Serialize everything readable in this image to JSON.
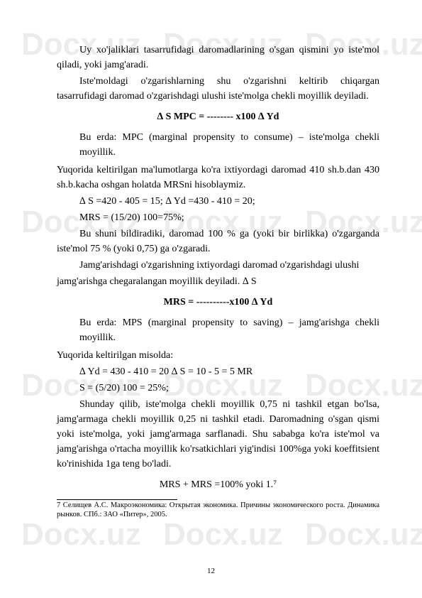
{
  "watermark": "Docx.uz",
  "paragraphs": {
    "p1": "Uy xo'jaliklari tasarrufidagi daromadlarining o'sgan qismini yo iste'mol qiladi, yoki jamg'aradi.",
    "p2": "Iste'moldagi o'zgarishlarning shu o'zgarishni keltirib chiqargan tasarrufidagi daromad o'zgarishdagi ulushi iste'molga chekli moyillik deyiladi.",
    "formula1": "∆ S MPC = -------- x100 ∆ Yd",
    "note1": "Bu erda: MPC (marginal propensity to consume) – iste'molga chekli moyillik.",
    "p3": "Yuqorida keltirilgan ma'lumotlarga ko'ra ixtiyordagi daromad 410 sh.b.dan 430 sh.b.kacha oshgan holatda MRSni hisoblaymiz.",
    "calc1": "∆ S =420 - 405 = 15;                   ∆ Yd =430 - 410 = 20;",
    "calc2": "MRS = (15/20) 100=75%;",
    "p4": "Bu shuni bildiradiki, daromad 100 % ga (yoki bir birlikka) o'zgarganda iste'mol 75 % (yoki 0,75) ga o'zgaradi.",
    "p5": "Jamg'arishdagi o'zgarishning ixtiyordagi daromad o'zgarishdagi ulushi",
    "p5b": "jamg'arishga chegaralangan moyillik deyiladi.   ∆ S",
    "formula2": "MRS = ----------x100 ∆ Yd",
    "note2": "Bu erda: MPS (marginal propensity to saving) – jamg'arishga chekli moyillik.",
    "p6": "Yuqorida keltirilgan misolda:",
    "calc3": "∆ Yd = 430 - 410 = 20              ∆ S = 10 - 5 = 5          MR",
    "calc4": " S = (5/20) 100 = 25%;",
    "p7": "Shunday qilib, iste'molga chekli moyillik 0,75 ni tashkil etgan bo'lsa, jamg'armaga chekli moyillik 0,25 ni tashkil etadi. Daromadning o'sgan qismi yoki iste'molga, yoki jamg'armaga sarflanadi. Shu sababga ko'ra iste'mol va jamg'arishga o'rtacha moyillik ko'rsatkichlari yig'indisi 100%ga yoki koeffitsient ko'rinishida 1ga teng bo'ladi.",
    "formula3": "MRS + MRS =100% yoki 1.⁷"
  },
  "footnote": "7 Селищев А.С. Макроэкономика: Открытая экономика. Причины экономического роста. Динамика рынков. СПб.: ЗАО «Питер», 2005.",
  "pageNumber": "12"
}
